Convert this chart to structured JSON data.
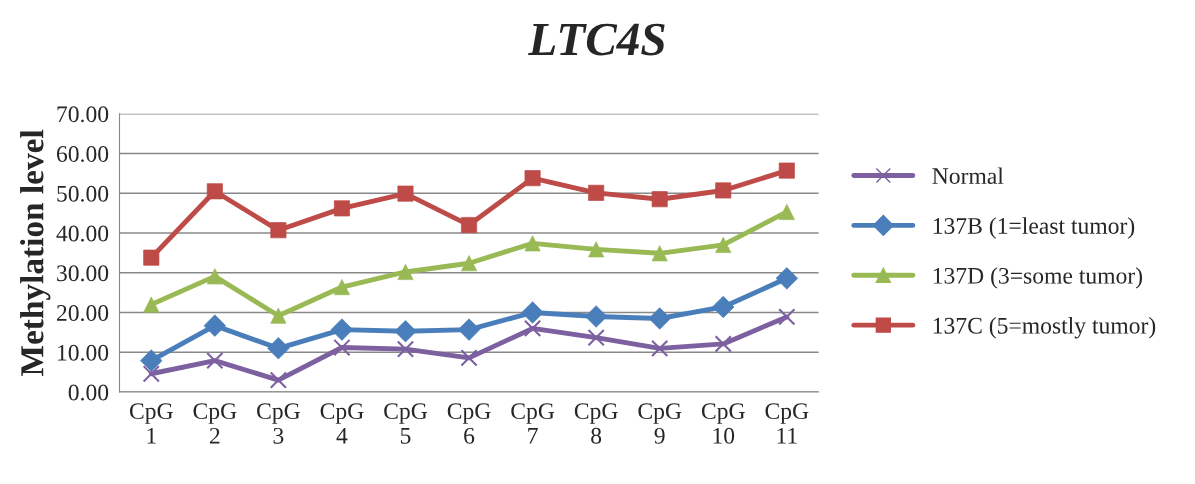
{
  "chart_data": {
    "type": "line",
    "title": "LTC4S",
    "ylabel": "Methylation level",
    "categories": [
      "CpG\n1",
      "CpG\n2",
      "CpG\n3",
      "CpG\n4",
      "CpG\n5",
      "CpG\n6",
      "CpG\n7",
      "CpG\n8",
      "CpG\n9",
      "CpG\n10",
      "CpG\n11"
    ],
    "series": [
      {
        "name": "Normal",
        "color": "#7d60a0",
        "marker": "cross",
        "values": [
          4.6,
          7.9,
          3.0,
          11.2,
          10.8,
          8.6,
          16.0,
          13.7,
          11.0,
          12.1,
          18.9
        ]
      },
      {
        "name": "137B (1=least tumor)",
        "color": "#4a7ebb",
        "marker": "diamond",
        "values": [
          7.9,
          16.7,
          11.0,
          15.7,
          15.3,
          15.7,
          20.0,
          19.0,
          18.5,
          21.4,
          28.6
        ]
      },
      {
        "name": "137D (3=some tumor)",
        "color": "#98b954",
        "marker": "triangle",
        "values": [
          22.0,
          29.1,
          19.2,
          26.4,
          30.2,
          32.4,
          37.4,
          35.9,
          34.9,
          37.0,
          45.3
        ]
      },
      {
        "name": "137C (5=mostly tumor)",
        "color": "#be4b48",
        "marker": "square",
        "values": [
          33.8,
          50.5,
          40.7,
          46.2,
          49.9,
          42.0,
          53.8,
          50.1,
          48.5,
          50.7,
          55.7
        ]
      }
    ],
    "ylim": [
      0,
      70
    ],
    "yticks": [
      {
        "value": 0,
        "label": "0.00"
      },
      {
        "value": 10,
        "label": "10.00"
      },
      {
        "value": 20,
        "label": "20.00"
      },
      {
        "value": 30,
        "label": "30.00"
      },
      {
        "value": 40,
        "label": "40.00"
      },
      {
        "value": 50,
        "label": "50.00"
      },
      {
        "value": 60,
        "label": "60.00"
      },
      {
        "value": 70,
        "label": "70.00"
      }
    ],
    "grid": "y",
    "legend": "right",
    "line_style": "solid"
  }
}
